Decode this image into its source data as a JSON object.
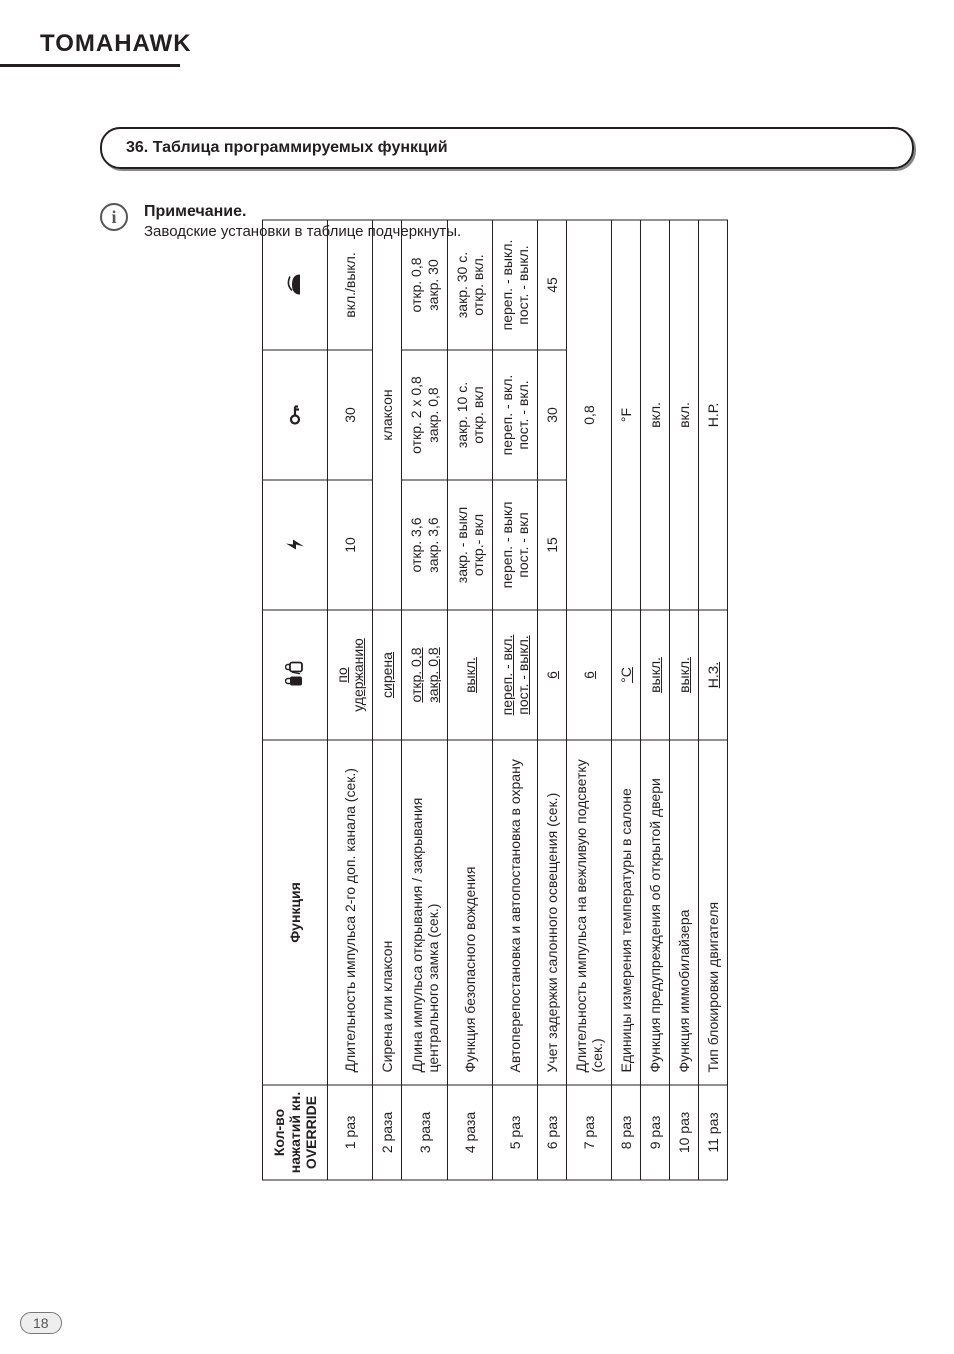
{
  "brand": "TOMAHAWK",
  "section_title": "36. Таблица программируемых функций",
  "note_title": "Примечание.",
  "note_sub": "Заводские установки в таблице подчеркнуты.",
  "page_number": "18",
  "table": {
    "headers": {
      "presses": "Кол-во\nнажатий\nкн. OVERRIDE",
      "function": "Функция"
    },
    "icons": [
      "lock",
      "bolt",
      "key",
      "trunk"
    ],
    "rows": [
      {
        "press": "1 раз",
        "fn": "Длительность импульса 2-го доп. канала (сек.)",
        "cells": [
          {
            "text": "по\nудержанию",
            "default": true
          },
          {
            "text": "10"
          },
          {
            "text": "30"
          },
          {
            "text": "вкл./выкл."
          }
        ]
      },
      {
        "press": "2 раза",
        "fn": "Сирена или клаксон",
        "cells": [
          {
            "text": "сирена",
            "default": true
          },
          {
            "text": "клаксон",
            "colspan": 3
          }
        ]
      },
      {
        "press": "3 раза",
        "fn": "Длина импульса открывания / закрывания центрального замка (сек.)",
        "cells": [
          {
            "text": "откр. 0,8\nзакр. 0,8",
            "default": true
          },
          {
            "text": "откр. 3,6\nзакр. 3,6"
          },
          {
            "text": "откр. 2 х 0,8\nзакр. 0,8"
          },
          {
            "text": "откр. 0,8\nзакр. 30"
          }
        ]
      },
      {
        "press": "4 раза",
        "fn": "Функция безопасного вождения",
        "cells": [
          {
            "text": "выкл.",
            "default": true
          },
          {
            "text": "закр. - выкл\nоткр.- вкл"
          },
          {
            "text": "закр.  10 с.\nоткр.  вкл"
          },
          {
            "text": "закр.  30 с.\nоткр.  вкл."
          }
        ]
      },
      {
        "press": "5 раз",
        "fn": "Автоперепостановка и автопостановка в охрану",
        "cells": [
          {
            "text": "переп. - вкл.\nпост. - выкл.",
            "default": true
          },
          {
            "text": "переп. - выкл\nпост. - вкл"
          },
          {
            "text": "переп. - вкл.\nпост. - вкл."
          },
          {
            "text": "переп. - выкл.\nпост. - выкл."
          }
        ]
      },
      {
        "press": "6 раз",
        "fn": "Учет задержки салонного освещения (сек.)",
        "cells": [
          {
            "text": "6",
            "default": true
          },
          {
            "text": "15"
          },
          {
            "text": "30"
          },
          {
            "text": "45"
          }
        ]
      },
      {
        "press": "7 раз",
        "fn": "Длительность импульса на вежливую подсветку (сек.)",
        "cells": [
          {
            "text": "6",
            "default": true
          },
          {
            "text": "0,8",
            "colspan": 3
          }
        ]
      },
      {
        "press": "8 раз",
        "fn": "Единицы измерения температуры в салоне",
        "cells": [
          {
            "text": "°С",
            "default": true
          },
          {
            "text": "°F",
            "colspan": 3
          }
        ]
      },
      {
        "press": "9 раз",
        "fn": "Функция предупреждения об открытой двери",
        "cells": [
          {
            "text": "выкл.",
            "default": true
          },
          {
            "text": "вкл.",
            "colspan": 3
          }
        ]
      },
      {
        "press": "10 раз",
        "fn": "Функция иммобилайзера",
        "cells": [
          {
            "text": "выкл.",
            "default": true
          },
          {
            "text": "вкл.",
            "colspan": 3
          }
        ]
      },
      {
        "press": "11 раз",
        "fn": "Тип блокировки двигателя",
        "cells": [
          {
            "text": "Н.З.",
            "default": true
          },
          {
            "text": "Н.Р.",
            "colspan": 3
          }
        ]
      }
    ]
  }
}
